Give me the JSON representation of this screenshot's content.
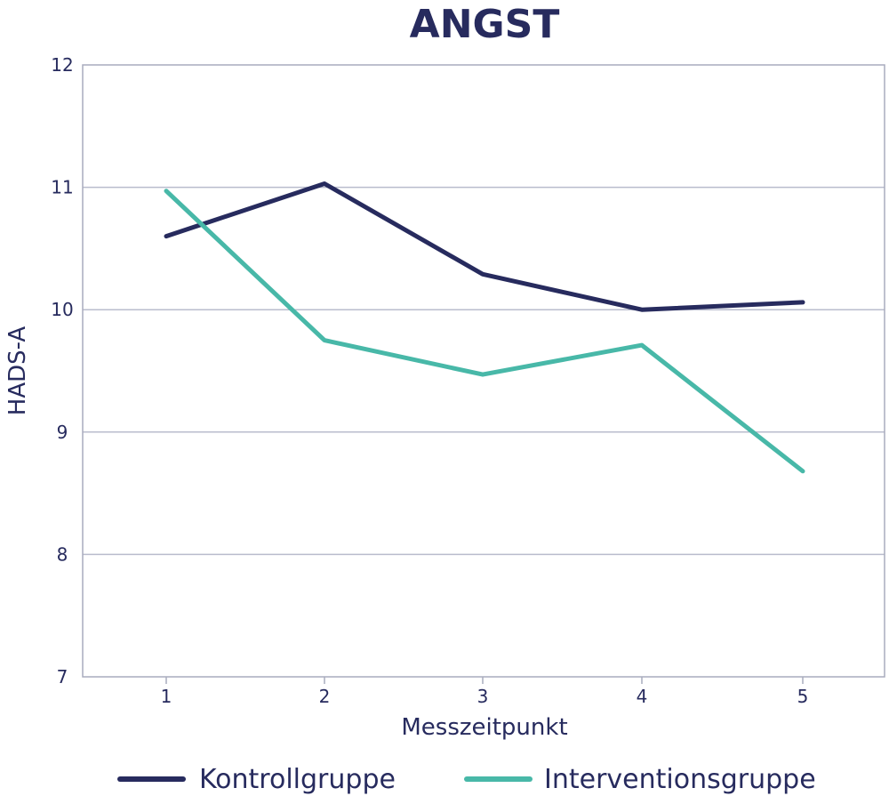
{
  "chart_data": {
    "type": "line",
    "title": "ANGST",
    "xlabel": "Messzeitpunkt",
    "ylabel": "HADS-A",
    "x": [
      1,
      2,
      3,
      4,
      5
    ],
    "x_tick_labels": [
      "1",
      "2",
      "3",
      "4",
      "5"
    ],
    "ylim": [
      7,
      12
    ],
    "y_ticks": [
      7,
      8,
      9,
      10,
      11,
      12
    ],
    "grid": "horizontal",
    "legend_position": "bottom",
    "series": [
      {
        "name": "Kontrollgruppe",
        "color": "#272b5e",
        "values": [
          10.6,
          11.03,
          10.29,
          10.0,
          10.06
        ]
      },
      {
        "name": "Interventionsgruppe",
        "color": "#48b8a8",
        "values": [
          10.97,
          9.75,
          9.47,
          9.71,
          8.68
        ]
      }
    ]
  },
  "colors": {
    "text": "#272b5e",
    "grid": "#b9bccd",
    "frame": "#a9acbd"
  }
}
